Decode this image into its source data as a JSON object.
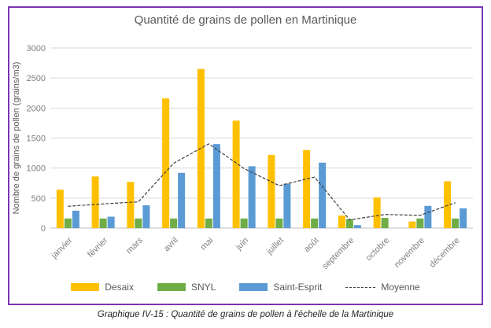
{
  "page": {
    "caption": "Graphique IV-15 : Quantité de grains de pollen à l'échelle de la Martinique"
  },
  "colors": {
    "frame_border": "#7A35B2",
    "gridline": "#D9D9D9",
    "axis_line": "#BFBFBF",
    "axis_text": "#808080",
    "title_text": "#595959",
    "caption_text": "#262626"
  },
  "chart_data": {
    "type": "bar",
    "title": "Quantité de grains de pollen en Martinique",
    "xlabel": "",
    "ylabel": "Nombre de grains de pollen (grains/m3)",
    "ylim": [
      0,
      3000
    ],
    "ytick_step": 500,
    "grid": "horizontal",
    "legend_position": "bottom",
    "categories": [
      "janvier",
      "février",
      "mars",
      "avril",
      "mai",
      "juin",
      "juillet",
      "août",
      "septembre",
      "octobre",
      "novembre",
      "décembre"
    ],
    "series": [
      {
        "name": "Desaix",
        "color": "#FFC000",
        "values": [
          640,
          860,
          770,
          2160,
          2650,
          1790,
          1220,
          1300,
          210,
          510,
          110,
          780
        ]
      },
      {
        "name": "SNYL",
        "color": "#70AD47",
        "values": [
          160,
          160,
          160,
          160,
          160,
          160,
          160,
          160,
          150,
          170,
          160,
          160
        ]
      },
      {
        "name": "Saint-Esprit",
        "color": "#5B9BD5",
        "values": [
          290,
          190,
          380,
          920,
          1400,
          1030,
          740,
          1090,
          50,
          0,
          370,
          330
        ]
      }
    ],
    "line_series": {
      "name": "Moyenne",
      "color": "#404040",
      "style": "dashed",
      "values": [
        363,
        403,
        437,
        1080,
        1403,
        993,
        707,
        850,
        137,
        227,
        213,
        423
      ]
    }
  }
}
